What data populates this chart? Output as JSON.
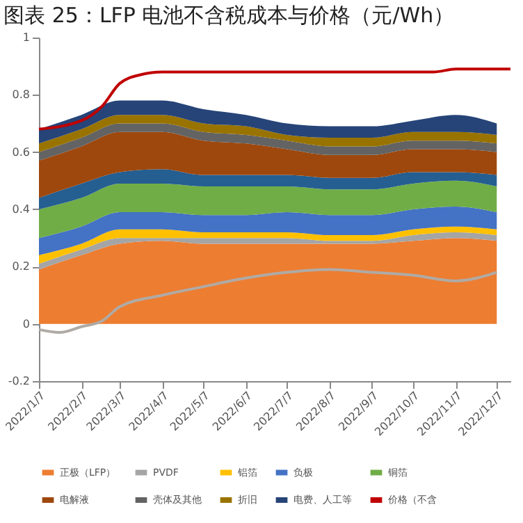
{
  "chart_data": {
    "type": "area",
    "stacked": true,
    "title": "图表 25：LFP 电池不含税成本与价格（元/Wh）",
    "x": [
      "2022-01-07",
      "2022-02-07",
      "2022-03-07",
      "2022-04-07",
      "2022-05-07",
      "2022-06-07",
      "2022-07-07",
      "2022-08-07",
      "2022-09-07",
      "2022-10-07",
      "2022-11-07",
      "2022-12-07"
    ],
    "xlim": [
      "2022-01-07",
      "2022-12-17"
    ],
    "xticks": [
      {
        "value": "2022-01-07",
        "label": "2022/1/7"
      },
      {
        "value": "2022-02-07",
        "label": "2022/2/7"
      },
      {
        "value": "2022-03-07",
        "label": "2022/3/7"
      },
      {
        "value": "2022-04-07",
        "label": "2022/4/7"
      },
      {
        "value": "2022-05-07",
        "label": "2022/5/7"
      },
      {
        "value": "2022-06-07",
        "label": "2022/6/7"
      },
      {
        "value": "2022-07-07",
        "label": "2022/7/7"
      },
      {
        "value": "2022-08-07",
        "label": "2022/8/7"
      },
      {
        "value": "2022-09-07",
        "label": "2022/9/7"
      },
      {
        "value": "2022-10-07",
        "label": "2022/10/7"
      },
      {
        "value": "2022-11-07",
        "label": "2022/11/7"
      },
      {
        "value": "2022-12-07",
        "label": "2022/12/7"
      }
    ],
    "ylim": [
      -0.2,
      1
    ],
    "yticks": [
      -0.2,
      0,
      0.2,
      0.4,
      0.6,
      0.8,
      1
    ],
    "grid": false,
    "legend": "bottom",
    "series": [
      {
        "name": "正极（LFP）",
        "color": "#ed7d31",
        "values": [
          0.19,
          0.24,
          0.28,
          0.29,
          0.28,
          0.28,
          0.28,
          0.28,
          0.28,
          0.29,
          0.3,
          0.29
        ]
      },
      {
        "name": "PVDF",
        "color": "#a5a5a5",
        "values": [
          0.02,
          0.02,
          0.02,
          0.01,
          0.02,
          0.02,
          0.02,
          0.01,
          0.01,
          0.02,
          0.02,
          0.02
        ]
      },
      {
        "name": "铝箔",
        "color": "#ffc000",
        "values": [
          0.03,
          0.02,
          0.03,
          0.03,
          0.02,
          0.02,
          0.02,
          0.02,
          0.02,
          0.02,
          0.02,
          0.02
        ]
      },
      {
        "name": "负极",
        "color": "#4472c4",
        "values": [
          0.06,
          0.06,
          0.06,
          0.06,
          0.06,
          0.06,
          0.07,
          0.07,
          0.07,
          0.07,
          0.07,
          0.06
        ]
      },
      {
        "name": "铜箔",
        "color": "#70ad47",
        "values": [
          0.1,
          0.1,
          0.1,
          0.1,
          0.1,
          0.1,
          0.09,
          0.09,
          0.09,
          0.09,
          0.09,
          0.09
        ]
      },
      {
        "color": "#255e91",
        "values": [
          0.04,
          0.05,
          0.04,
          0.05,
          0.04,
          0.04,
          0.04,
          0.04,
          0.04,
          0.04,
          0.03,
          0.04
        ]
      },
      {
        "name": "电解液",
        "color": "#9e480e",
        "values": [
          0.13,
          0.13,
          0.14,
          0.13,
          0.12,
          0.11,
          0.09,
          0.08,
          0.08,
          0.08,
          0.08,
          0.08
        ]
      },
      {
        "name": "壳体及其他",
        "color": "#636363",
        "values": [
          0.03,
          0.03,
          0.03,
          0.03,
          0.03,
          0.03,
          0.03,
          0.03,
          0.03,
          0.03,
          0.03,
          0.03
        ]
      },
      {
        "name": "折旧",
        "color": "#997300",
        "values": [
          0.03,
          0.03,
          0.03,
          0.03,
          0.03,
          0.03,
          0.02,
          0.03,
          0.03,
          0.03,
          0.03,
          0.03
        ]
      },
      {
        "name": "电费、人工等",
        "color": "#264478",
        "values": [
          0.05,
          0.05,
          0.05,
          0.05,
          0.05,
          0.04,
          0.04,
          0.04,
          0.04,
          0.04,
          0.06,
          0.04
        ]
      },
      {
        "name": "价格（不含",
        "type": "line",
        "color": "#c00000",
        "x": [
          "2022-01-07",
          "2022-02-07",
          "2022-02-22",
          "2022-03-07",
          "2022-03-22",
          "2022-04-07",
          "2022-10-22",
          "2022-11-07",
          "2022-12-17"
        ],
        "values": [
          0.68,
          0.71,
          0.76,
          0.84,
          0.87,
          0.88,
          0.88,
          0.89,
          0.89
        ]
      },
      {
        "type": "line",
        "color": "#b0aaa5",
        "x": [
          "2022-01-07",
          "2022-01-22",
          "2022-02-07",
          "2022-02-22",
          "2022-03-07",
          "2022-04-07",
          "2022-05-07",
          "2022-06-07",
          "2022-07-07",
          "2022-08-07",
          "2022-09-07",
          "2022-10-07",
          "2022-11-07",
          "2022-12-07"
        ],
        "values": [
          -0.02,
          -0.03,
          -0.01,
          0.01,
          0.06,
          0.1,
          0.13,
          0.16,
          0.18,
          0.19,
          0.18,
          0.17,
          0.15,
          0.18
        ]
      }
    ]
  }
}
